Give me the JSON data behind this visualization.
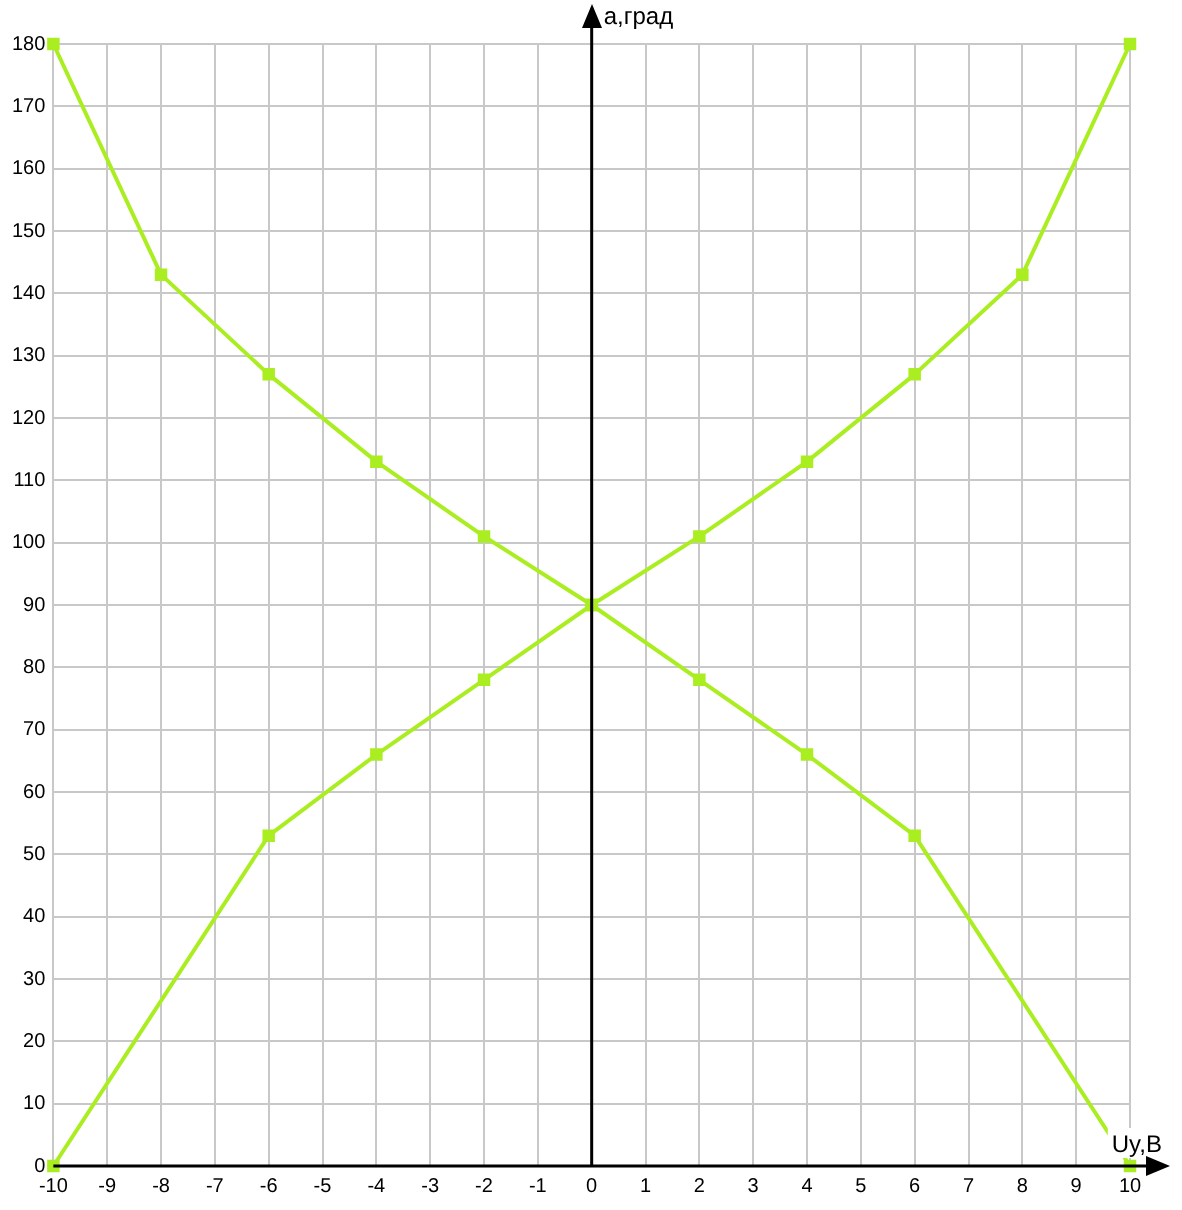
{
  "chart_data": {
    "type": "line",
    "xlabel": "Uy,B",
    "ylabel": "a,град",
    "xlim": [
      -10,
      10
    ],
    "xticks": [
      -10,
      -9,
      -8,
      -7,
      -6,
      -5,
      -4,
      -3,
      -2,
      -1,
      0,
      1,
      2,
      3,
      4,
      5,
      6,
      7,
      8,
      9,
      10
    ],
    "ylim": [
      0,
      180
    ],
    "yticks": [
      0,
      10,
      20,
      30,
      40,
      50,
      60,
      70,
      80,
      90,
      100,
      110,
      120,
      130,
      140,
      150,
      160,
      170,
      180
    ],
    "grid": true,
    "marker": "square",
    "legend": false,
    "series": [
      {
        "color": "#aaee22",
        "x": [
          -10,
          -6,
          -4,
          -2,
          0,
          2,
          4,
          6,
          8,
          10
        ],
        "values": [
          0,
          53,
          66,
          78,
          90,
          101,
          113,
          127,
          143,
          180
        ]
      },
      {
        "color": "#aaee22",
        "x": [
          -10,
          -8,
          -6,
          -4,
          -2,
          0,
          2,
          4,
          6,
          10
        ],
        "values": [
          180,
          143,
          127,
          113,
          101,
          90,
          78,
          66,
          53,
          0
        ]
      }
    ]
  }
}
